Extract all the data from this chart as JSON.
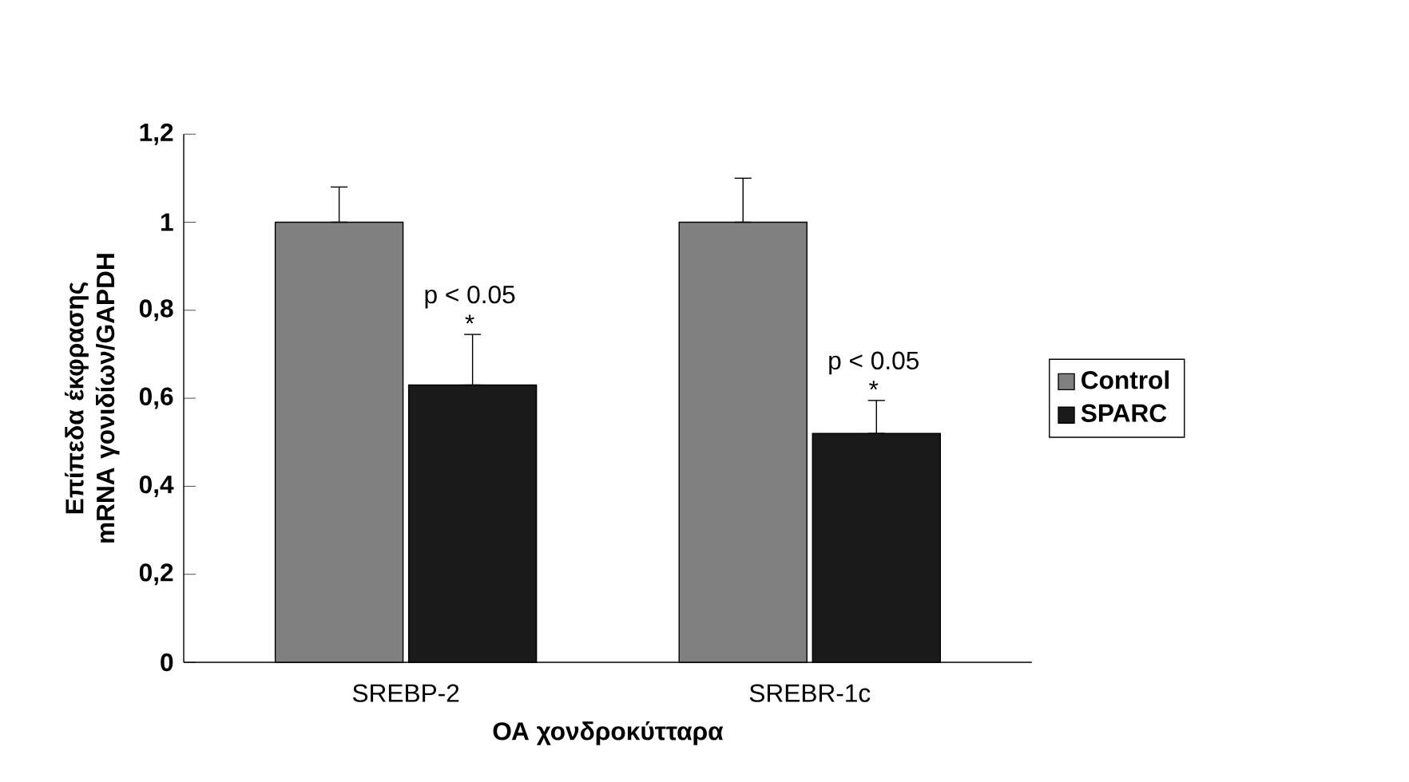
{
  "chart_data": {
    "type": "bar",
    "xlabel": "ΟΑ χονδροκύτταρα",
    "ylabel": "Επίπεδα έκφρασης mRNA γονιδίων/GAPDH",
    "categories": [
      "SREBP-2",
      "SREBR-1c"
    ],
    "series": [
      {
        "name": "Control",
        "color": "#808080",
        "values": [
          1,
          1
        ],
        "errors": [
          [
            1,
            1.08
          ],
          [
            1,
            1.1
          ]
        ]
      },
      {
        "name": "SPARC",
        "color": "#1a1a1a",
        "values": [
          0.63,
          0.52
        ],
        "errors": [
          [
            0.63,
            0.745
          ],
          [
            0.52,
            0.595
          ]
        ]
      }
    ],
    "ylim": [
      0,
      1.2
    ],
    "yticks": [
      0,
      {
        "value": 0.2,
        "label": "0,2"
      },
      {
        "value": 0.4,
        "label": "0,4"
      },
      {
        "value": 0.6,
        "label": "0,6"
      },
      {
        "value": 0.8,
        "label": "0,8"
      },
      1,
      {
        "value": 1.2,
        "label": "1,2"
      }
    ],
    "annotations": [
      {
        "text": "p < 0.05",
        "x": "SREBP-2",
        "y": 0.83
      },
      {
        "text": "*",
        "x": "SREBP-2",
        "y": 0.77
      },
      {
        "text": "p < 0.05",
        "x": "SREBR-1c",
        "y": 0.68
      },
      {
        "text": "*",
        "x": "SREBR-1c",
        "y": 0.62
      }
    ],
    "legend": "right",
    "grid": false
  }
}
